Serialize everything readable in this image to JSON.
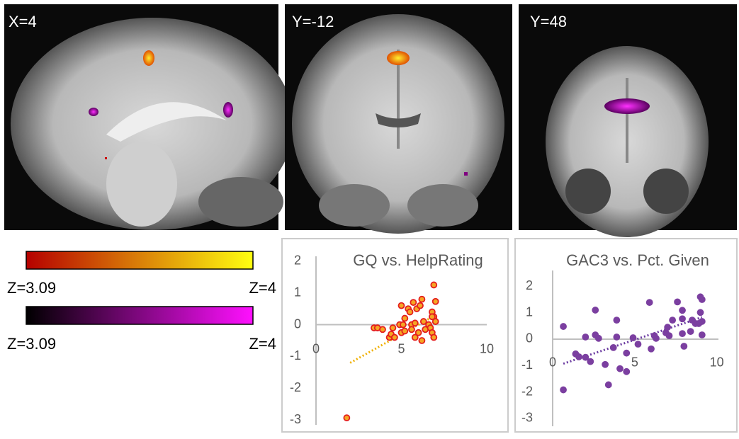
{
  "panels": [
    {
      "label": "X=4"
    },
    {
      "label": "Y=-12"
    },
    {
      "label": "Y=48"
    }
  ],
  "colorbars": [
    {
      "min_label": "Z=3.09",
      "max_label": "Z=4",
      "colors": [
        "#b50000",
        "#ffff10"
      ]
    },
    {
      "min_label": "Z=3.09",
      "max_label": "Z=4",
      "colors": [
        "#000000",
        "#ff10ff"
      ]
    }
  ],
  "chart_data": [
    {
      "type": "scatter",
      "title": "GQ vs. HelpRating",
      "color": "#f5a623",
      "edge_color": "#e41e1e",
      "trend_color": "#f0b000",
      "xlim": [
        0,
        10
      ],
      "ylim": [
        -3.15,
        2.15
      ],
      "xticks": [
        0,
        5,
        10
      ],
      "yticks": [
        -3,
        -2,
        -1,
        0,
        1,
        2
      ],
      "x": [
        1.8,
        3.4,
        3.6,
        3.9,
        4.3,
        4.4,
        4.5,
        4.6,
        4.9,
        5.0,
        5.0,
        5.1,
        5.2,
        5.4,
        5.5,
        5.6,
        5.6,
        5.7,
        5.8,
        5.9,
        6.0,
        6.1,
        6.2,
        6.3,
        6.4,
        6.2,
        6.6,
        6.7,
        6.8,
        6.8,
        6.9,
        6.9,
        7.0,
        7.0,
        6.9,
        6.8,
        5.8,
        5.2
      ],
      "values": [
        -2.93,
        -0.1,
        -0.1,
        -0.15,
        -0.4,
        -0.3,
        -0.1,
        -0.4,
        0,
        -0.25,
        0.6,
        0,
        0.2,
        0.5,
        0.4,
        0,
        -0.15,
        0.7,
        0.05,
        0.5,
        -0.25,
        0.6,
        0.8,
        0.1,
        -0.15,
        -0.5,
        0,
        -0.1,
        -0.25,
        0.4,
        1.25,
        0.25,
        0.73,
        0.1,
        -0.4,
        0.25,
        -0.4,
        -0.2
      ],
      "trendline": {
        "x": [
          2,
          7
        ],
        "values": [
          -1.2,
          0.3
        ]
      }
    },
    {
      "type": "scatter",
      "title": "GAC3 vs. Pct. Given",
      "color": "#7b3fa0",
      "edge_color": "#7b3fa0",
      "trend_color": "#6a3aa0",
      "xlim": [
        0,
        10.1
      ],
      "ylim": [
        -3.3,
        2.6
      ],
      "xticks": [
        0,
        5,
        10
      ],
      "yticks": [
        -3,
        -2,
        -1,
        0,
        1,
        2
      ],
      "x": [
        0.65,
        0.65,
        1.4,
        1.6,
        2.0,
        2.0,
        2.3,
        2.6,
        2.6,
        2.8,
        3.2,
        3.4,
        3.7,
        3.9,
        3.9,
        4.1,
        4.5,
        4.5,
        4.9,
        5.2,
        5.9,
        6.0,
        6.2,
        6.3,
        6.9,
        7.0,
        7.1,
        7.3,
        7.6,
        7.9,
        7.9,
        7.9,
        8.0,
        8.4,
        8.5,
        8.7,
        9.0,
        9.1,
        9.0,
        9.1,
        9.1,
        8.9
      ],
      "values": [
        -1.92,
        0.48,
        -0.56,
        -0.67,
        0.08,
        -0.69,
        -0.85,
        1.1,
        0.16,
        0.03,
        -0.96,
        -1.73,
        -0.32,
        0.08,
        0.72,
        -1.12,
        -1.23,
        -0.53,
        0.05,
        -0.19,
        1.39,
        -0.37,
        0.13,
        0.03,
        0.24,
        0.45,
        0.13,
        0.72,
        1.41,
        1.09,
        0.77,
        0.21,
        -0.27,
        0.29,
        0.72,
        0.59,
        1.6,
        1.5,
        1.01,
        0.67,
        0.16,
        0.59
      ],
      "trendline": {
        "x": [
          0.65,
          9.1
        ],
        "values": [
          -0.93,
          0.83
        ]
      }
    }
  ]
}
